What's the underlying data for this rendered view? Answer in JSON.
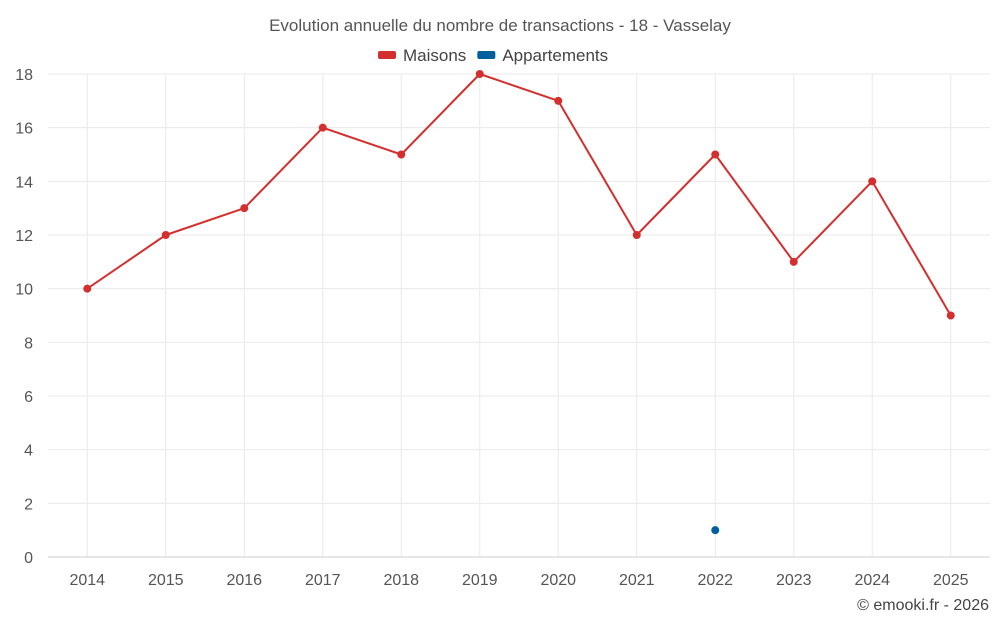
{
  "chart_data": {
    "type": "line",
    "title": "Evolution annuelle du nombre de transactions - 18 - Vasselay",
    "categories": [
      "2014",
      "2015",
      "2016",
      "2017",
      "2018",
      "2019",
      "2020",
      "2021",
      "2022",
      "2023",
      "2024",
      "2025"
    ],
    "series": [
      {
        "name": "Maisons",
        "color": "#d32f2f",
        "values": [
          10,
          12,
          13,
          16,
          15,
          18,
          17,
          12,
          15,
          11,
          14,
          9
        ]
      },
      {
        "name": "Appartements",
        "color": "#005f9e",
        "values": [
          null,
          null,
          null,
          null,
          null,
          null,
          null,
          null,
          1,
          null,
          null,
          null
        ]
      }
    ],
    "ylim": [
      0,
      18
    ],
    "yticks": [
      0,
      2,
      4,
      6,
      8,
      10,
      12,
      14,
      16,
      18
    ],
    "grid": true,
    "legend": "top-center",
    "xlabel": "",
    "ylabel": ""
  },
  "credit": "© emooki.fr - 2026"
}
